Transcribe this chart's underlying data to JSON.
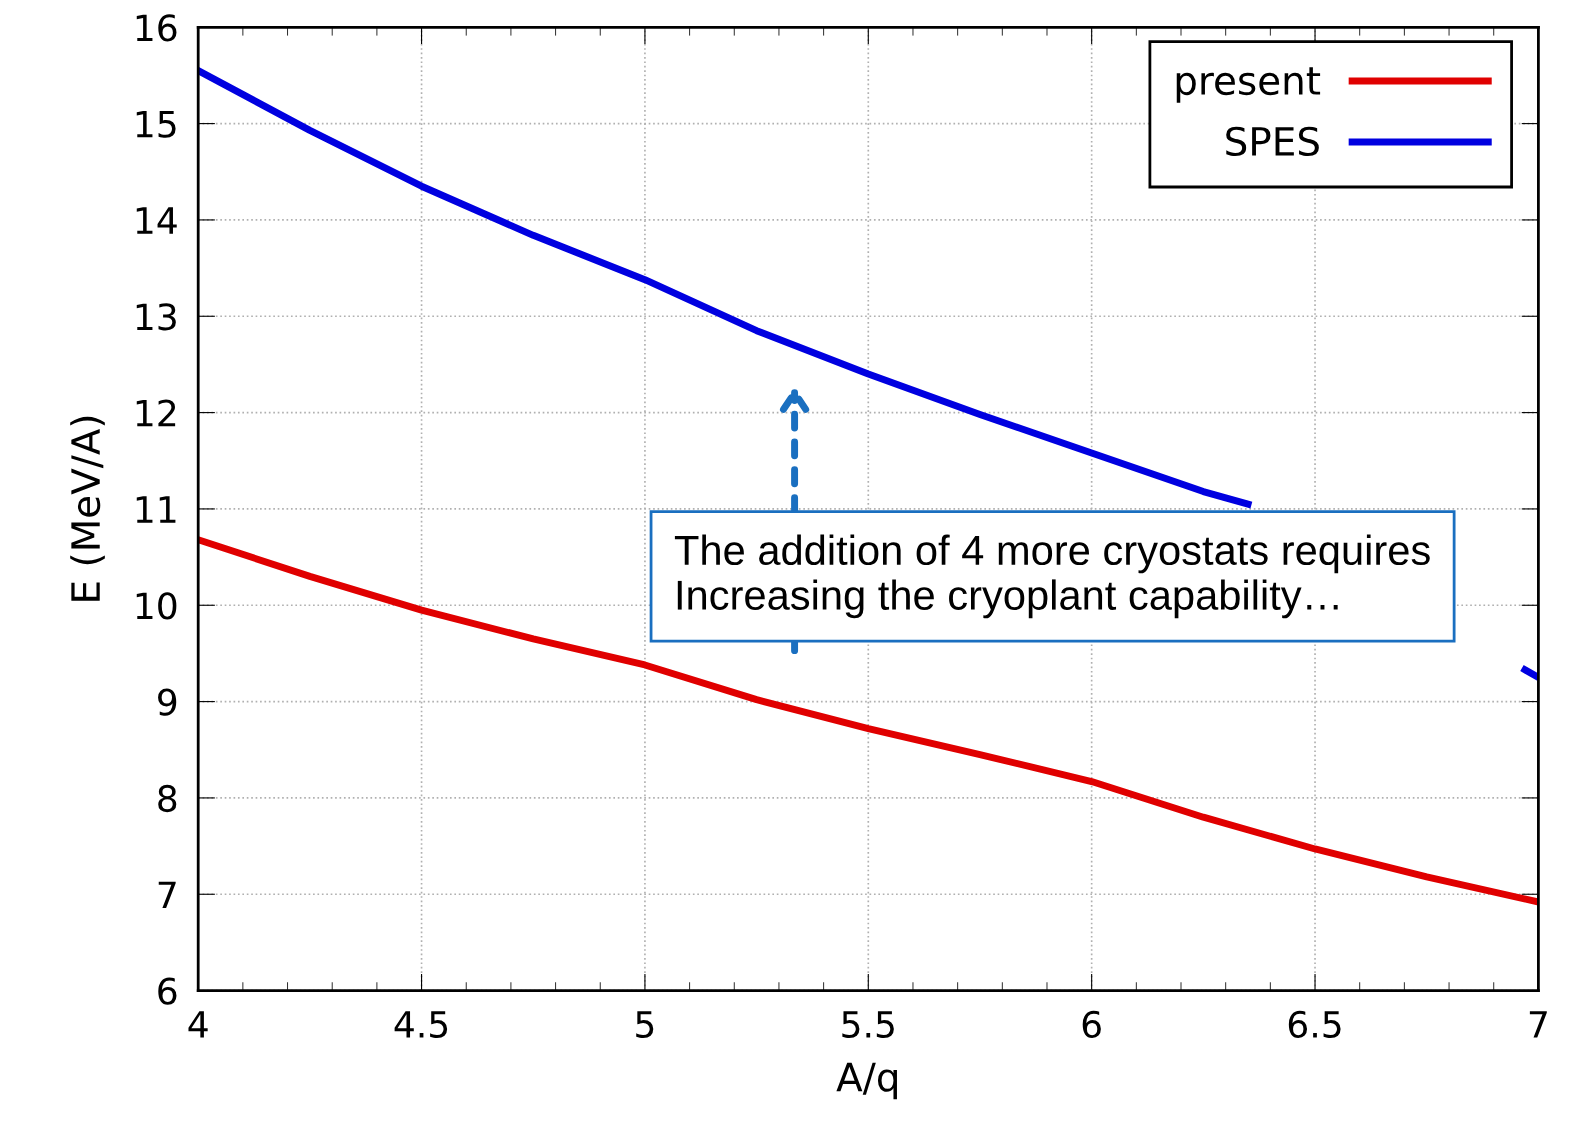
{
  "chart_data": {
    "type": "line",
    "xlabel": "A/q",
    "ylabel": "E (MeV/A)",
    "x": [
      4,
      4.25,
      4.5,
      4.75,
      5,
      5.25,
      5.5,
      5.75,
      6,
      6.25,
      6.5,
      6.75,
      7
    ],
    "series": [
      {
        "name": "present",
        "color": "#e00000",
        "values": [
          10.68,
          10.3,
          9.95,
          9.65,
          9.38,
          9.02,
          8.72,
          8.45,
          8.17,
          7.8,
          7.47,
          7.18,
          6.92
        ]
      },
      {
        "name": "SPES",
        "color": "#0000e0",
        "x": [
          4,
          4.25,
          4.5,
          4.75,
          5,
          5.25,
          5.5,
          5.75,
          6,
          6.25,
          6.35,
          6.6,
          6.97,
          7
        ],
        "values": [
          15.55,
          14.93,
          14.35,
          13.84,
          13.38,
          12.85,
          12.4,
          11.98,
          11.58,
          11.18,
          11.05,
          null,
          9.33,
          9.25
        ]
      }
    ],
    "xlim": [
      4,
      7
    ],
    "xticks": [
      4,
      4.5,
      5,
      5.5,
      6,
      6.5,
      7
    ],
    "ylim": [
      6,
      16
    ],
    "yticks": [
      6,
      7,
      8,
      9,
      10,
      11,
      12,
      13,
      14,
      15,
      16
    ],
    "grid": true,
    "legend": "top right",
    "marker": "none",
    "line_style": "solid",
    "annotations": [
      "The addition of 4 more cryostats requires\nIncreasing the cryoplant capability…"
    ]
  }
}
